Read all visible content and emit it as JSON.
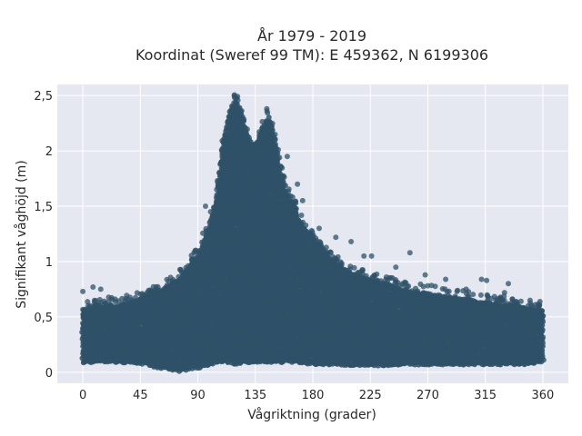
{
  "chart_data": {
    "type": "scatter",
    "title_line1": "År 1979 - 2019",
    "title_line2": "Koordinat (Sweref 99 TM): E 459362, N 6199306",
    "xlabel": "Vågriktning (grader)",
    "ylabel": "Signifikant våghöjd (m)",
    "xlim": [
      -20,
      380
    ],
    "ylim": [
      -0.1,
      2.6
    ],
    "x_ticks": [
      0,
      45,
      90,
      135,
      180,
      225,
      270,
      315,
      360
    ],
    "x_tick_labels": [
      "0",
      "45",
      "90",
      "135",
      "180",
      "225",
      "270",
      "315",
      "360"
    ],
    "y_ticks": [
      0,
      0.5,
      1,
      1.5,
      2,
      2.5
    ],
    "y_tick_labels": [
      "0",
      "0,5",
      "1",
      "1,5",
      "2",
      "2,5"
    ],
    "grid": true,
    "colors": {
      "background": "#e5e8f0",
      "grid": "#ffffff",
      "marker": "#2f5168"
    },
    "series": [
      {
        "envelope": {
          "x": [
            0,
            15,
            30,
            45,
            60,
            75,
            90,
            100,
            105,
            110,
            115,
            120,
            125,
            130,
            135,
            140,
            145,
            150,
            155,
            160,
            165,
            170,
            180,
            190,
            200,
            210,
            225,
            240,
            255,
            270,
            285,
            300,
            315,
            330,
            345,
            360
          ],
          "upper": [
            0.55,
            0.58,
            0.6,
            0.65,
            0.72,
            0.82,
            1.05,
            1.35,
            1.6,
            2.1,
            2.35,
            2.45,
            2.3,
            2.1,
            2.0,
            2.2,
            2.3,
            2.1,
            1.8,
            1.6,
            1.5,
            1.35,
            1.2,
            1.05,
            0.95,
            0.88,
            0.82,
            0.78,
            0.72,
            0.7,
            0.67,
            0.65,
            0.62,
            0.6,
            0.58,
            0.55
          ],
          "lower": [
            0.1,
            0.1,
            0.1,
            0.09,
            0.05,
            0.02,
            0.05,
            0.08,
            0.1,
            0.1,
            0.1,
            0.08,
            0.1,
            0.1,
            0.1,
            0.1,
            0.1,
            0.1,
            0.1,
            0.1,
            0.1,
            0.1,
            0.08,
            0.08,
            0.08,
            0.07,
            0.07,
            0.07,
            0.08,
            0.08,
            0.08,
            0.08,
            0.08,
            0.08,
            0.08,
            0.1
          ]
        },
        "outliers": [
          {
            "x": 0,
            "y": 0.73
          },
          {
            "x": 8,
            "y": 0.77
          },
          {
            "x": 14,
            "y": 0.75
          },
          {
            "x": 35,
            "y": 0.66
          },
          {
            "x": 52,
            "y": 0.72
          },
          {
            "x": 70,
            "y": 0.82
          },
          {
            "x": 88,
            "y": 1.1
          },
          {
            "x": 96,
            "y": 1.5
          },
          {
            "x": 100,
            "y": 1.45
          },
          {
            "x": 120,
            "y": 2.48
          },
          {
            "x": 144,
            "y": 2.38
          },
          {
            "x": 160,
            "y": 1.95
          },
          {
            "x": 168,
            "y": 1.7
          },
          {
            "x": 172,
            "y": 1.55
          },
          {
            "x": 185,
            "y": 1.3
          },
          {
            "x": 198,
            "y": 1.22
          },
          {
            "x": 210,
            "y": 1.18
          },
          {
            "x": 220,
            "y": 1.05
          },
          {
            "x": 226,
            "y": 1.05
          },
          {
            "x": 245,
            "y": 0.95
          },
          {
            "x": 256,
            "y": 1.08
          },
          {
            "x": 268,
            "y": 0.88
          },
          {
            "x": 284,
            "y": 0.84
          },
          {
            "x": 300,
            "y": 0.75
          },
          {
            "x": 312,
            "y": 0.84
          },
          {
            "x": 316,
            "y": 0.83
          },
          {
            "x": 330,
            "y": 0.72
          },
          {
            "x": 333,
            "y": 0.8
          },
          {
            "x": 350,
            "y": 0.65
          },
          {
            "x": 357,
            "y": 0.6
          }
        ]
      }
    ]
  }
}
